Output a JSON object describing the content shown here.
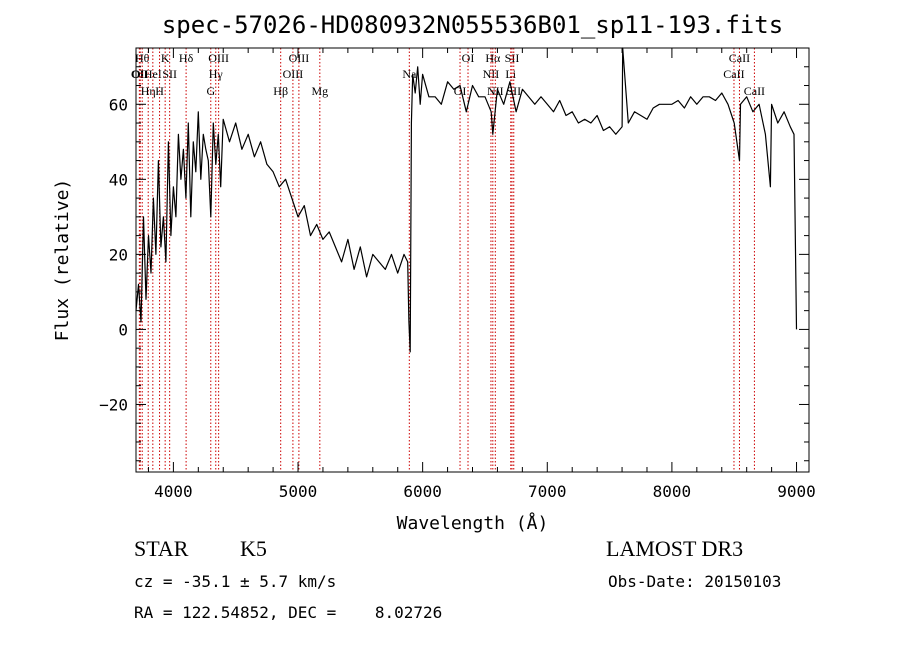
{
  "chart_data": {
    "type": "line",
    "title": "spec-57026-HD080932N055536B01_sp11-193.fits",
    "xlabel": "Wavelength (Å)",
    "ylabel": "Flux (relative)",
    "xlim": [
      3700,
      9100
    ],
    "ylim": [
      -38,
      75
    ],
    "x_ticks": [
      4000,
      5000,
      6000,
      7000,
      8000,
      9000
    ],
    "y_ticks": [
      -20,
      0,
      20,
      40,
      60
    ],
    "line_color": "#000000",
    "marker_color": "#cc0000",
    "series": [
      {
        "x": [
          3700,
          3720,
          3740,
          3760,
          3780,
          3800,
          3820,
          3840,
          3860,
          3880,
          3900,
          3920,
          3940,
          3960,
          3980,
          4000,
          4020,
          4040,
          4060,
          4080,
          4100,
          4120,
          4140,
          4160,
          4180,
          4200,
          4220,
          4240,
          4260,
          4280,
          4300,
          4320,
          4340,
          4360,
          4380,
          4400,
          4450,
          4500,
          4550,
          4600,
          4650,
          4700,
          4750,
          4800,
          4850,
          4900,
          4950,
          5000,
          5050,
          5100,
          5150,
          5200,
          5250,
          5300,
          5350,
          5400,
          5450,
          5500,
          5550,
          5600,
          5650,
          5700,
          5750,
          5800,
          5850,
          5880,
          5890,
          5900,
          5910,
          5920,
          5940,
          5960,
          5980,
          6000,
          6050,
          6100,
          6150,
          6200,
          6250,
          6300,
          6350,
          6400,
          6450,
          6500,
          6550,
          6563,
          6600,
          6650,
          6700,
          6750,
          6800,
          6850,
          6900,
          6950,
          7000,
          7050,
          7100,
          7150,
          7200,
          7250,
          7300,
          7350,
          7400,
          7450,
          7500,
          7550,
          7600,
          7605,
          7650,
          7700,
          7750,
          7800,
          7850,
          7900,
          7950,
          8000,
          8050,
          8100,
          8150,
          8200,
          8250,
          8300,
          8350,
          8400,
          8450,
          8500,
          8542,
          8550,
          8600,
          8650,
          8700,
          8750,
          8790,
          8800,
          8850,
          8900,
          8950,
          8980,
          9000
        ],
        "y": [
          5,
          12,
          2,
          30,
          8,
          25,
          15,
          35,
          20,
          45,
          22,
          30,
          18,
          50,
          25,
          38,
          30,
          52,
          40,
          48,
          35,
          55,
          30,
          50,
          42,
          58,
          40,
          52,
          48,
          45,
          30,
          55,
          44,
          52,
          38,
          56,
          50,
          55,
          48,
          52,
          46,
          50,
          44,
          42,
          38,
          40,
          35,
          30,
          33,
          25,
          28,
          24,
          26,
          22,
          18,
          24,
          16,
          22,
          14,
          20,
          18,
          16,
          20,
          15,
          20,
          18,
          2,
          -6,
          55,
          68,
          63,
          70,
          60,
          68,
          62,
          62,
          60,
          66,
          64,
          65,
          58,
          65,
          62,
          62,
          58,
          52,
          64,
          60,
          66,
          58,
          64,
          62,
          60,
          62,
          60,
          58,
          61,
          57,
          58,
          55,
          56,
          55,
          57,
          53,
          54,
          52,
          54,
          75,
          55,
          58,
          57,
          56,
          59,
          60,
          60,
          60,
          61,
          59,
          62,
          60,
          62,
          62,
          61,
          63,
          60,
          55,
          45,
          60,
          62,
          58,
          60,
          52,
          38,
          60,
          55,
          58,
          54,
          52,
          0
        ]
      }
    ],
    "line_markers": [
      {
        "wl": 3727,
        "label": "OII",
        "row": 2
      },
      {
        "wl": 3734,
        "label": "OII",
        "row": 2
      },
      {
        "wl": 3750,
        "label": "Hθ",
        "row": 1
      },
      {
        "wl": 3798,
        "label": "Hη",
        "row": 3
      },
      {
        "wl": 3835,
        "label": "HeI",
        "row": 2
      },
      {
        "wl": 3889,
        "label": "H",
        "row": 3
      },
      {
        "wl": 3934,
        "label": "K",
        "row": 1
      },
      {
        "wl": 3970,
        "label": "SII",
        "row": 2
      },
      {
        "wl": 4102,
        "label": "Hδ",
        "row": 1
      },
      {
        "wl": 4300,
        "label": "G",
        "row": 3
      },
      {
        "wl": 4340,
        "label": "Hγ",
        "row": 2
      },
      {
        "wl": 4363,
        "label": "OIII",
        "row": 1
      },
      {
        "wl": 4861,
        "label": "Hβ",
        "row": 3
      },
      {
        "wl": 4959,
        "label": "OIII",
        "row": 2
      },
      {
        "wl": 5007,
        "label": "OIII",
        "row": 1
      },
      {
        "wl": 5175,
        "label": "Mg",
        "row": 3
      },
      {
        "wl": 5893,
        "label": "Na",
        "row": 2
      },
      {
        "wl": 6300,
        "label": "OI",
        "row": 3
      },
      {
        "wl": 6364,
        "label": "OI",
        "row": 1
      },
      {
        "wl": 6548,
        "label": "NII",
        "row": 2
      },
      {
        "wl": 6563,
        "label": "Hα",
        "row": 1
      },
      {
        "wl": 6583,
        "label": "NII",
        "row": 3
      },
      {
        "wl": 6707,
        "label": "Li",
        "row": 2
      },
      {
        "wl": 6717,
        "label": "SII",
        "row": 1
      },
      {
        "wl": 6731,
        "label": "SII",
        "row": 3
      },
      {
        "wl": 8498,
        "label": "CaII",
        "row": 2
      },
      {
        "wl": 8542,
        "label": "CaII",
        "row": 1
      },
      {
        "wl": 8662,
        "label": "CaII",
        "row": 3
      }
    ]
  },
  "footer": {
    "object_class": "STAR",
    "subclass": "K5",
    "survey": "LAMOST DR3",
    "velocity": "cz = -35.1 ± 5.7 km/s",
    "obs_date": "Obs-Date: 20150103",
    "coords": "RA = 122.54852, DEC =    8.02726"
  }
}
